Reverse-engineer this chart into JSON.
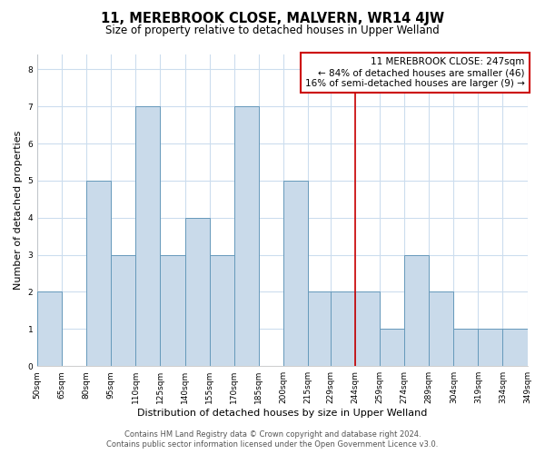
{
  "title": "11, MEREBROOK CLOSE, MALVERN, WR14 4JW",
  "subtitle": "Size of property relative to detached houses in Upper Welland",
  "xlabel": "Distribution of detached houses by size in Upper Welland",
  "ylabel": "Number of detached properties",
  "bin_edges": [
    50,
    65,
    80,
    95,
    110,
    125,
    140,
    155,
    170,
    185,
    200,
    215,
    229,
    244,
    259,
    274,
    289,
    304,
    319,
    334,
    349
  ],
  "bar_heights": [
    2,
    0,
    5,
    3,
    7,
    3,
    4,
    3,
    7,
    0,
    5,
    2,
    2,
    2,
    1,
    3,
    2,
    1,
    1,
    1
  ],
  "bar_facecolor": "#c9daea",
  "bar_edgecolor": "#6699bb",
  "bar_linewidth": 0.7,
  "vline_x": 244,
  "vline_color": "#cc0000",
  "vline_linewidth": 1.2,
  "annotation_title": "11 MEREBROOK CLOSE: 247sqm",
  "annotation_line1": "← 84% of detached houses are smaller (46)",
  "annotation_line2": "16% of semi-detached houses are larger (9) →",
  "annotation_box_edgecolor": "#cc0000",
  "annotation_box_facecolor": "#ffffff",
  "ylim": [
    0,
    8.4
  ],
  "yticks": [
    0,
    1,
    2,
    3,
    4,
    5,
    6,
    7,
    8
  ],
  "xtick_labels": [
    "50sqm",
    "65sqm",
    "80sqm",
    "95sqm",
    "110sqm",
    "125sqm",
    "140sqm",
    "155sqm",
    "170sqm",
    "185sqm",
    "200sqm",
    "215sqm",
    "229sqm",
    "244sqm",
    "259sqm",
    "274sqm",
    "289sqm",
    "304sqm",
    "319sqm",
    "334sqm",
    "349sqm"
  ],
  "footer_line1": "Contains HM Land Registry data © Crown copyright and database right 2024.",
  "footer_line2": "Contains public sector information licensed under the Open Government Licence v3.0.",
  "bg_color": "#ffffff",
  "grid_color": "#ccddee",
  "title_fontsize": 10.5,
  "subtitle_fontsize": 8.5,
  "label_fontsize": 8,
  "tick_fontsize": 6.5,
  "footer_fontsize": 6,
  "ann_fontsize": 7.5
}
